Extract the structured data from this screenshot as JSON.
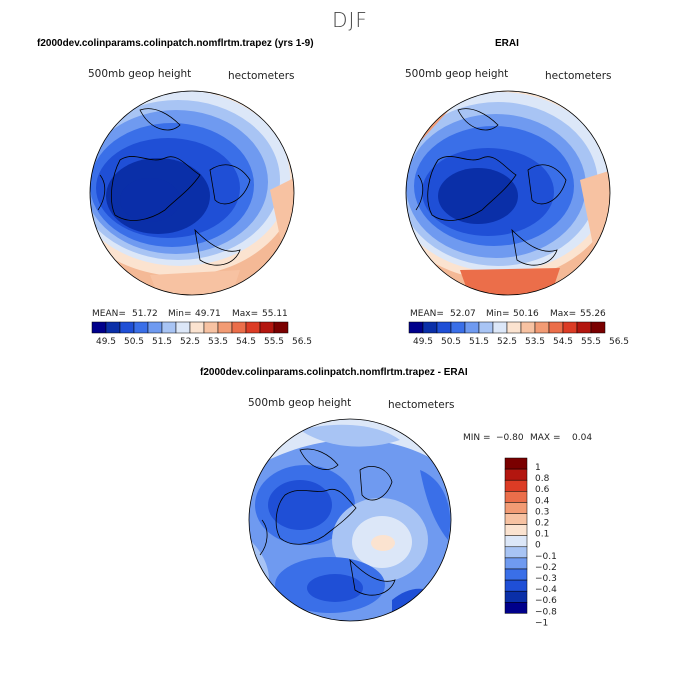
{
  "title": "DJF",
  "panels": [
    {
      "title": "f2000dev.colinparams.colinpatch.nomflrtm.trapez (yrs 1-9)",
      "variable": "500mb geop height",
      "units": "hectometers",
      "stats": {
        "mean_label": "MEAN=",
        "mean": "51.72",
        "min_label": "Min=",
        "min": "49.71",
        "max_label": "Max=",
        "max": "55.11"
      }
    },
    {
      "title": "ERAI",
      "variable": "500mb geop height",
      "units": "hectometers",
      "stats": {
        "mean_label": "MEAN=",
        "mean": "52.07",
        "min_label": "Min=",
        "min": "50.16",
        "max_label": "Max=",
        "max": "55.26"
      }
    },
    {
      "title": "f2000dev.colinparams.colinpatch.nomflrtm.trapez - ERAI",
      "variable": "500mb geop height",
      "units": "hectometers",
      "stats": {
        "min_label": "MIN =",
        "min": "−0.80",
        "max_label": "MAX =",
        "max": "0.04"
      }
    }
  ],
  "colorbar_abs": {
    "colors": [
      "#00008b",
      "#0a2fa8",
      "#1f4fd6",
      "#3a6fe8",
      "#6f9af0",
      "#a8c4f4",
      "#dce7f8",
      "#fbe3d0",
      "#f7c2a2",
      "#f29b74",
      "#eb6e4a",
      "#dc3c25",
      "#b3160f",
      "#7a0000"
    ],
    "tick_labels": [
      "49.5",
      "50.5",
      "51.5",
      "52.5",
      "53.5",
      "54.5",
      "55.5",
      "56.5"
    ]
  },
  "colorbar_diff": {
    "colors": [
      "#7a0000",
      "#b3160f",
      "#dc3c25",
      "#eb6e4a",
      "#f29b74",
      "#f7c2a2",
      "#fbe3d0",
      "#dce7f8",
      "#a8c4f4",
      "#6f9af0",
      "#3a6fe8",
      "#1f4fd6",
      "#0a2fa8",
      "#00008b"
    ],
    "tick_labels": [
      "1",
      "0.8",
      "0.6",
      "0.4",
      "0.3",
      "0.2",
      "0.1",
      "0",
      "−0.1",
      "−0.2",
      "−0.3",
      "−0.4",
      "−0.6",
      "−0.8",
      "−1"
    ]
  },
  "chart_data": [
    {
      "type": "heatmap",
      "projection": "north polar stereographic",
      "title": "f2000dev.colinparams.colinpatch.nomflrtm.trapez (yrs 1-9)",
      "field": "500mb geop height",
      "units": "hectometers",
      "mean": 51.72,
      "min": 49.71,
      "max": 55.11,
      "contour_levels": [
        49.5,
        50,
        50.5,
        51,
        51.5,
        52,
        52.5,
        53,
        53.5,
        54,
        54.5,
        55,
        55.5,
        56,
        56.5
      ]
    },
    {
      "type": "heatmap",
      "projection": "north polar stereographic",
      "title": "ERAI",
      "field": "500mb geop height",
      "units": "hectometers",
      "mean": 52.07,
      "min": 50.16,
      "max": 55.26,
      "contour_levels": [
        49.5,
        50,
        50.5,
        51,
        51.5,
        52,
        52.5,
        53,
        53.5,
        54,
        54.5,
        55,
        55.5,
        56,
        56.5
      ]
    },
    {
      "type": "heatmap",
      "projection": "north polar stereographic",
      "title": "f2000dev.colinparams.colinpatch.nomflrtm.trapez - ERAI",
      "field": "500mb geop height difference",
      "units": "hectometers",
      "min": -0.8,
      "max": 0.04,
      "contour_levels": [
        -1,
        -0.8,
        -0.6,
        -0.4,
        -0.3,
        -0.2,
        -0.1,
        0,
        0.1,
        0.2,
        0.3,
        0.4,
        0.6,
        0.8,
        1
      ]
    }
  ]
}
